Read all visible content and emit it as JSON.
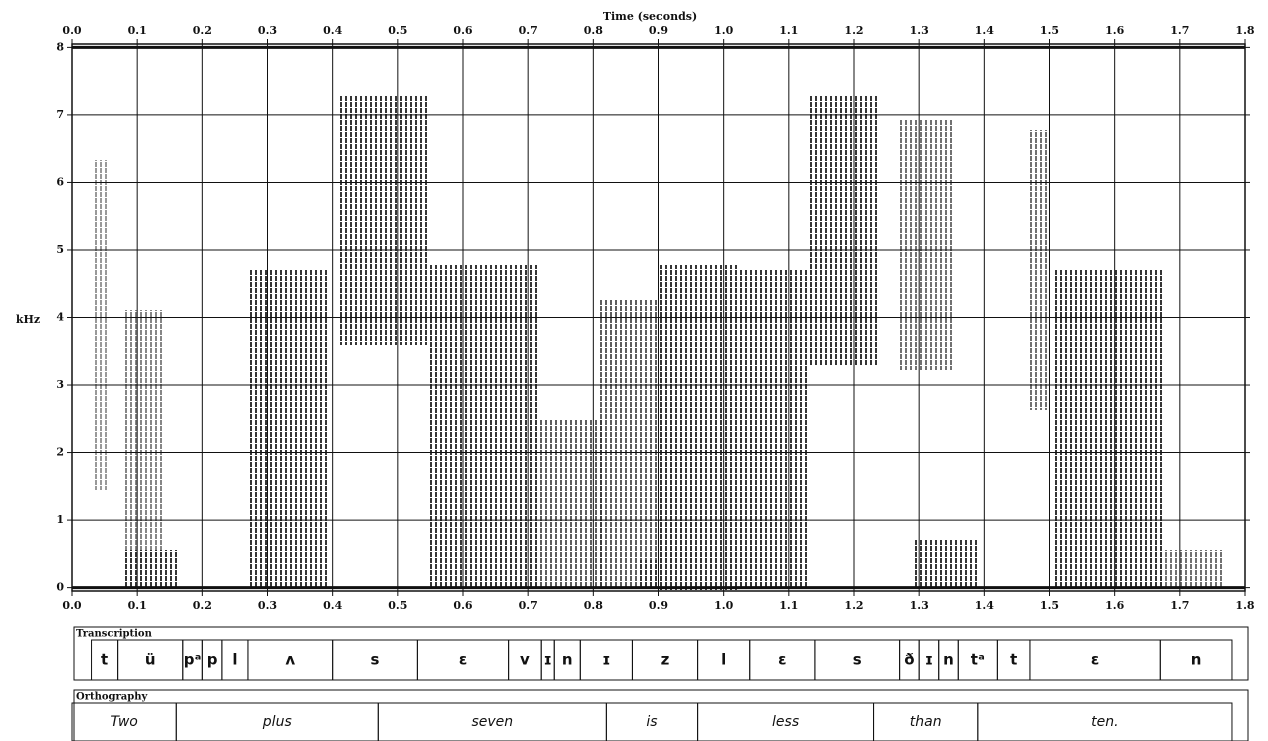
{
  "chart_data": {
    "type": "spectrogram",
    "xlabel": "Time (seconds)",
    "ylabel": "kHz",
    "xlim": [
      0,
      1.8
    ],
    "xticks": [
      {
        "value": 0,
        "label": "0.0"
      },
      0.1,
      0.2,
      0.3,
      0.4,
      0.5,
      0.6,
      0.7,
      0.8,
      0.9,
      {
        "value": 1,
        "label": "1.0"
      },
      1.1,
      1.2,
      1.3,
      1.4,
      1.5,
      1.6,
      1.7,
      1.8
    ],
    "ylim": [
      -0.05,
      8.05
    ],
    "yticks": [
      0,
      1,
      2,
      3,
      4,
      5,
      6,
      7,
      8
    ],
    "grid": true,
    "tiers": [
      {
        "name": "Transcription",
        "segments": [
          {
            "label": "t",
            "start": 0.03,
            "end": 0.07
          },
          {
            "label": "ü",
            "start": 0.07,
            "end": 0.17
          },
          {
            "label": "pᵃ",
            "start": 0.17,
            "end": 0.2
          },
          {
            "label": "p",
            "start": 0.2,
            "end": 0.23
          },
          {
            "label": "l",
            "start": 0.23,
            "end": 0.27
          },
          {
            "label": "ʌ",
            "start": 0.27,
            "end": 0.4
          },
          {
            "label": "s",
            "start": 0.4,
            "end": 0.53
          },
          {
            "label": "ɛ",
            "start": 0.53,
            "end": 0.67
          },
          {
            "label": "v",
            "start": 0.67,
            "end": 0.72
          },
          {
            "label": "ɪ",
            "start": 0.72,
            "end": 0.74
          },
          {
            "label": "n",
            "start": 0.74,
            "end": 0.78
          },
          {
            "label": "ɪ",
            "start": 0.78,
            "end": 0.86
          },
          {
            "label": "z",
            "start": 0.86,
            "end": 0.96
          },
          {
            "label": "l",
            "start": 0.96,
            "end": 1.04
          },
          {
            "label": "ɛ",
            "start": 1.04,
            "end": 1.14
          },
          {
            "label": "s",
            "start": 1.14,
            "end": 1.27
          },
          {
            "label": "ð",
            "start": 1.27,
            "end": 1.3
          },
          {
            "label": "ɪ",
            "start": 1.3,
            "end": 1.33
          },
          {
            "label": "n",
            "start": 1.33,
            "end": 1.36
          },
          {
            "label": "tᵃ",
            "start": 1.36,
            "end": 1.42
          },
          {
            "label": "t",
            "start": 1.42,
            "end": 1.47
          },
          {
            "label": "ɛ",
            "start": 1.47,
            "end": 1.67
          },
          {
            "label": "n",
            "start": 1.67,
            "end": 1.78
          }
        ]
      },
      {
        "name": "Orthography",
        "segments": [
          {
            "label": "Two",
            "start": 0,
            "end": 0.16
          },
          {
            "label": "plus",
            "start": 0.16,
            "end": 0.47
          },
          {
            "label": "seven",
            "start": 0.47,
            "end": 0.82
          },
          {
            "label": "is",
            "start": 0.82,
            "end": 0.96
          },
          {
            "label": "less",
            "start": 0.96,
            "end": 1.23
          },
          {
            "label": "than",
            "start": 1.23,
            "end": 1.39
          },
          {
            "label": "ten.",
            "start": 1.39,
            "end": 1.78
          }
        ]
      }
    ]
  }
}
